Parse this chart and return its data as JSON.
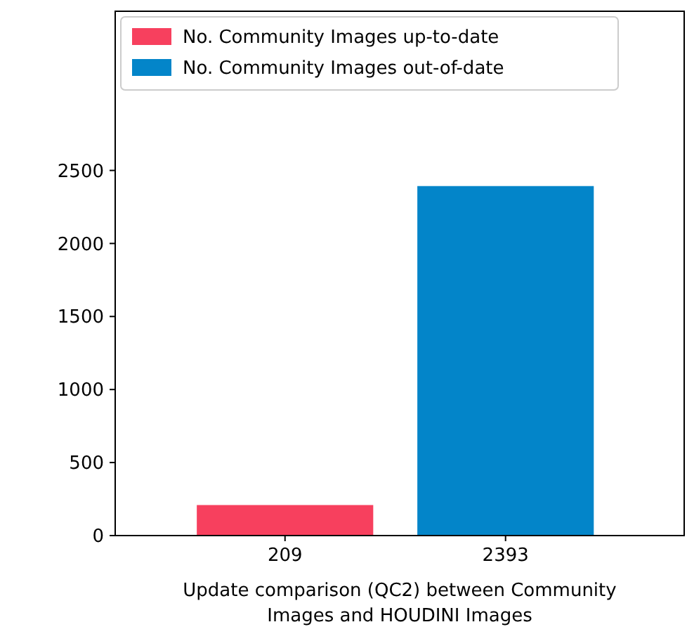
{
  "chart_data": {
    "type": "bar",
    "xlabel": "Update comparison (QC2) between Community\nImages and HOUDINI Images",
    "categories": [
      "209",
      "2393"
    ],
    "series": [
      {
        "name": "No. Community Images up-to-date",
        "color": "#f7405e",
        "values": [
          209,
          null
        ]
      },
      {
        "name": "No. Community Images out-of-date",
        "color": "#0385c9",
        "values": [
          null,
          2393
        ]
      }
    ],
    "ylim": [
      0,
      3590
    ],
    "yticks": [
      0,
      500,
      1000,
      1500,
      2000,
      2500
    ],
    "legend": "top left",
    "grid": false
  }
}
